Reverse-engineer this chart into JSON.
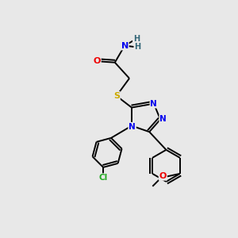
{
  "bg_color": "#e8e8e8",
  "atom_colors": {
    "C": "#000000",
    "N": "#0000ee",
    "O": "#ee0000",
    "S": "#ccaa00",
    "Cl": "#22aa22",
    "H": "#336677"
  },
  "bond_color": "#000000",
  "lw": 1.4,
  "figsize": [
    3.0,
    3.0
  ],
  "dpi": 100
}
